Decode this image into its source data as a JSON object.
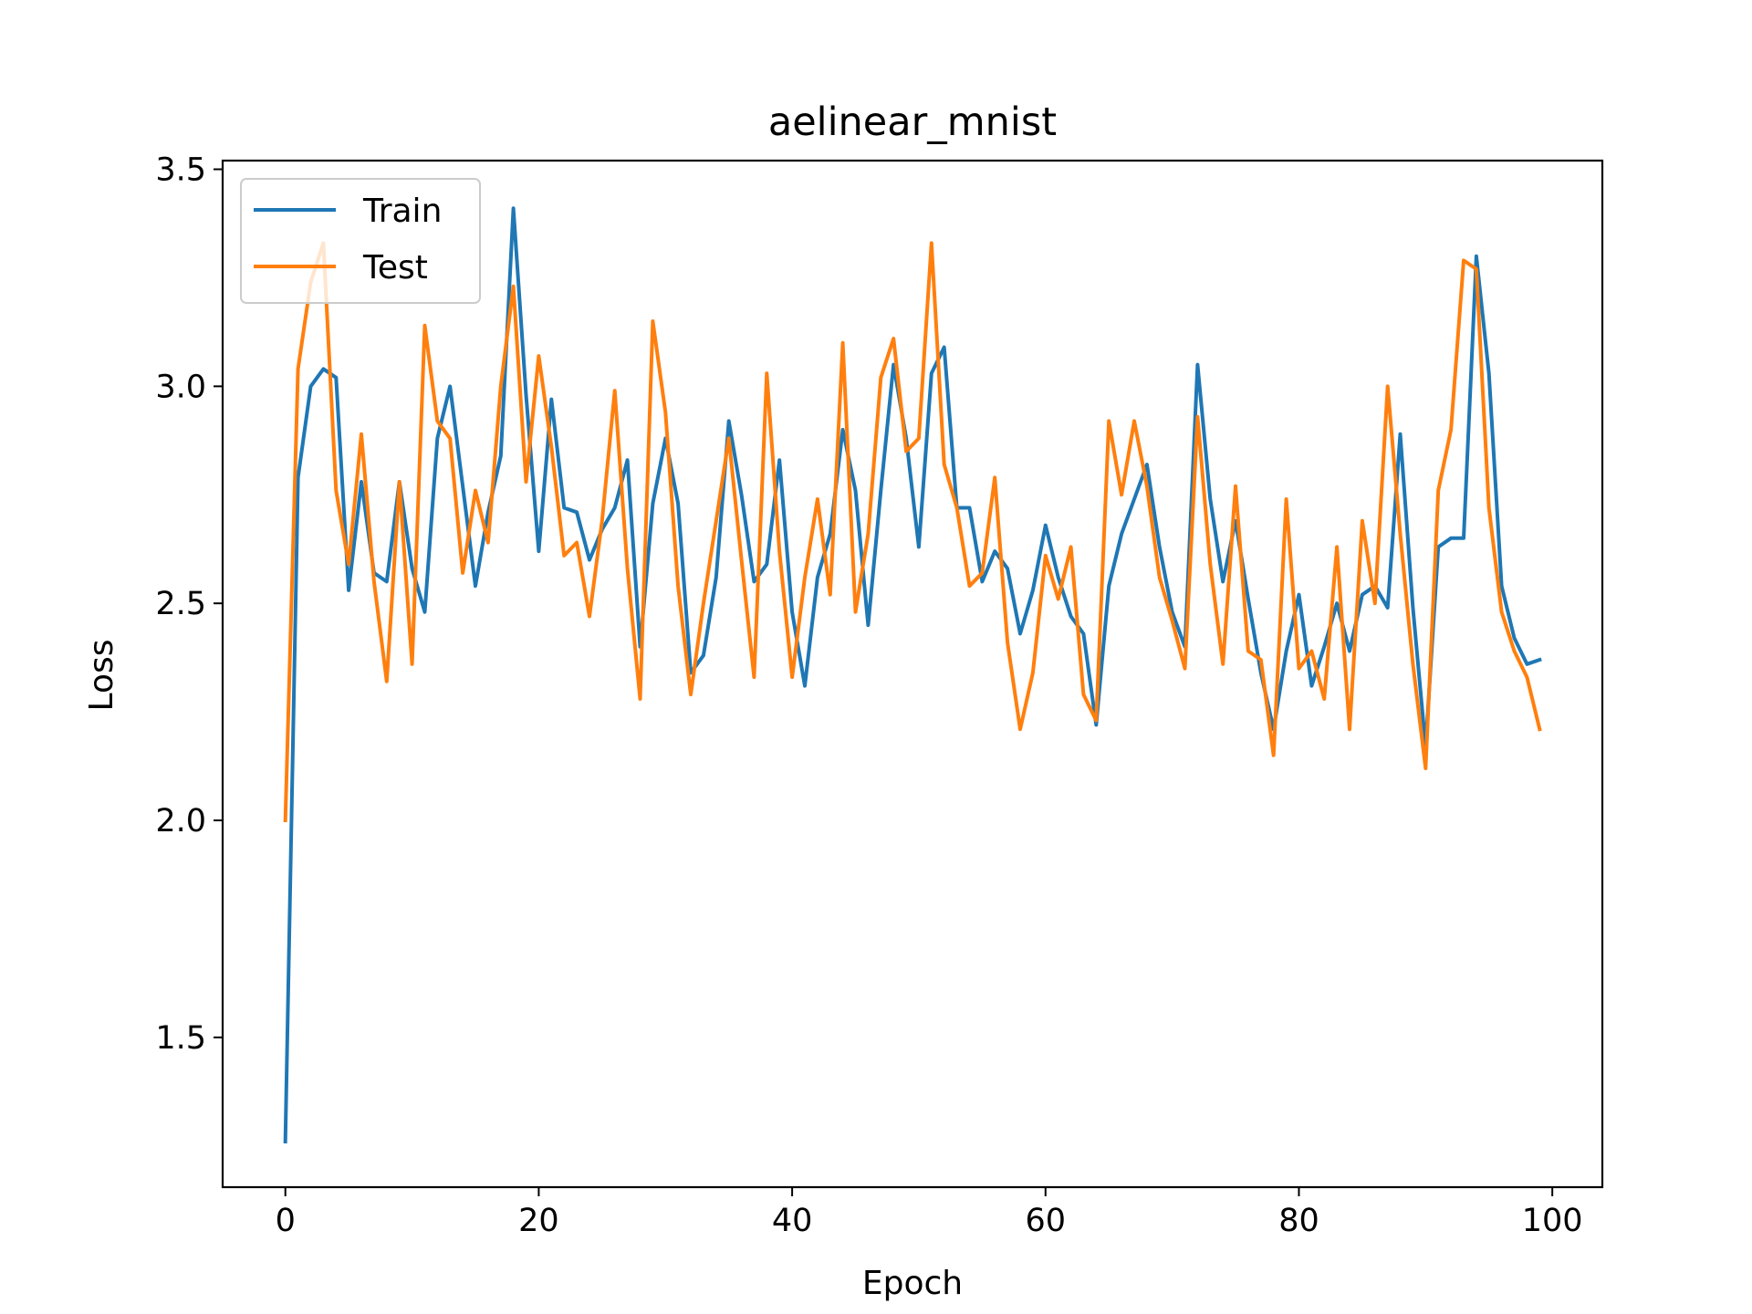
{
  "chart_data": {
    "type": "line",
    "title": "aelinear_mnist",
    "xlabel": "Epoch",
    "ylabel": "Loss",
    "xlim": [
      -4.95,
      103.95
    ],
    "ylim": [
      1.155,
      3.52
    ],
    "xticks": [
      0,
      20,
      40,
      60,
      80,
      100
    ],
    "xtick_labels": [
      "0",
      "20",
      "40",
      "60",
      "80",
      "100"
    ],
    "yticks": [
      1.5,
      2.0,
      2.5,
      3.0,
      3.5
    ],
    "ytick_labels": [
      "1.5",
      "2.0",
      "2.5",
      "3.0",
      "3.5"
    ],
    "grid": false,
    "legend_position": "upper-left",
    "series": [
      {
        "name": "Train",
        "color": "#1f77b4",
        "x": [
          0,
          1,
          2,
          3,
          4,
          5,
          6,
          7,
          8,
          9,
          10,
          11,
          12,
          13,
          14,
          15,
          16,
          17,
          18,
          19,
          20,
          21,
          22,
          23,
          24,
          25,
          26,
          27,
          28,
          29,
          30,
          31,
          32,
          33,
          34,
          35,
          36,
          37,
          38,
          39,
          40,
          41,
          42,
          43,
          44,
          45,
          46,
          47,
          48,
          49,
          50,
          51,
          52,
          53,
          54,
          55,
          56,
          57,
          58,
          59,
          60,
          61,
          62,
          63,
          64,
          65,
          66,
          67,
          68,
          69,
          70,
          71,
          72,
          73,
          74,
          75,
          76,
          77,
          78,
          79,
          80,
          81,
          82,
          83,
          84,
          85,
          86,
          87,
          88,
          89,
          90,
          91,
          92,
          93,
          94,
          95,
          96,
          97,
          98,
          99
        ],
        "values": [
          1.26,
          2.79,
          3.0,
          3.04,
          3.02,
          2.53,
          2.78,
          2.57,
          2.55,
          2.78,
          2.58,
          2.48,
          2.88,
          3.0,
          2.77,
          2.54,
          2.71,
          2.84,
          3.41,
          2.98,
          2.62,
          2.97,
          2.72,
          2.71,
          2.6,
          2.67,
          2.72,
          2.83,
          2.4,
          2.73,
          2.88,
          2.73,
          2.34,
          2.38,
          2.56,
          2.92,
          2.75,
          2.55,
          2.59,
          2.83,
          2.48,
          2.31,
          2.56,
          2.66,
          2.9,
          2.76,
          2.45,
          2.76,
          3.05,
          2.88,
          2.63,
          3.03,
          3.09,
          2.72,
          2.72,
          2.55,
          2.62,
          2.58,
          2.43,
          2.53,
          2.68,
          2.56,
          2.47,
          2.43,
          2.22,
          2.54,
          2.66,
          2.74,
          2.82,
          2.63,
          2.48,
          2.4,
          3.05,
          2.74,
          2.55,
          2.69,
          2.51,
          2.34,
          2.21,
          2.39,
          2.52,
          2.31,
          2.4,
          2.5,
          2.39,
          2.52,
          2.54,
          2.49,
          2.89,
          2.49,
          2.17,
          2.63,
          2.65,
          2.65,
          3.3,
          3.03,
          2.54,
          2.42,
          2.36,
          2.37
        ]
      },
      {
        "name": "Test",
        "color": "#ff7f0e",
        "x": [
          0,
          1,
          2,
          3,
          4,
          5,
          6,
          7,
          8,
          9,
          10,
          11,
          12,
          13,
          14,
          15,
          16,
          17,
          18,
          19,
          20,
          21,
          22,
          23,
          24,
          25,
          26,
          27,
          28,
          29,
          30,
          31,
          32,
          33,
          34,
          35,
          36,
          37,
          38,
          39,
          40,
          41,
          42,
          43,
          44,
          45,
          46,
          47,
          48,
          49,
          50,
          51,
          52,
          53,
          54,
          55,
          56,
          57,
          58,
          59,
          60,
          61,
          62,
          63,
          64,
          65,
          66,
          67,
          68,
          69,
          70,
          71,
          72,
          73,
          74,
          75,
          76,
          77,
          78,
          79,
          80,
          81,
          82,
          83,
          84,
          85,
          86,
          87,
          88,
          89,
          90,
          91,
          92,
          93,
          94,
          95,
          96,
          97,
          98,
          99
        ],
        "values": [
          2.0,
          3.04,
          3.24,
          3.33,
          2.76,
          2.59,
          2.89,
          2.55,
          2.32,
          2.78,
          2.36,
          3.14,
          2.92,
          2.88,
          2.57,
          2.76,
          2.64,
          3.0,
          3.23,
          2.78,
          3.07,
          2.86,
          2.61,
          2.64,
          2.47,
          2.69,
          2.99,
          2.58,
          2.28,
          3.15,
          2.94,
          2.54,
          2.29,
          2.5,
          2.69,
          2.88,
          2.6,
          2.33,
          3.03,
          2.62,
          2.33,
          2.56,
          2.74,
          2.52,
          3.1,
          2.48,
          2.66,
          3.02,
          3.11,
          2.85,
          2.88,
          3.33,
          2.82,
          2.72,
          2.54,
          2.57,
          2.79,
          2.41,
          2.21,
          2.34,
          2.61,
          2.51,
          2.63,
          2.29,
          2.23,
          2.92,
          2.75,
          2.92,
          2.77,
          2.56,
          2.46,
          2.35,
          2.93,
          2.59,
          2.36,
          2.77,
          2.39,
          2.37,
          2.15,
          2.74,
          2.35,
          2.39,
          2.28,
          2.63,
          2.21,
          2.69,
          2.5,
          3.0,
          2.66,
          2.36,
          2.12,
          2.76,
          2.9,
          3.29,
          3.27,
          2.72,
          2.48,
          2.39,
          2.33,
          2.21
        ]
      }
    ]
  }
}
